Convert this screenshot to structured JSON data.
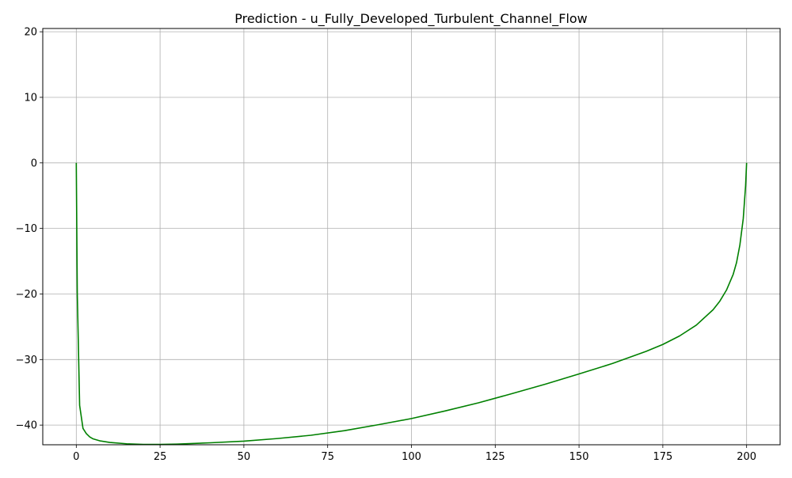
{
  "chart_data": {
    "type": "line",
    "title": "Prediction - u_Fully_Developed_Turbulent_Channel_Flow",
    "xlabel": "",
    "ylabel": "",
    "xlim": [
      -10,
      210
    ],
    "ylim": [
      -43,
      20.5
    ],
    "xticks": [
      0,
      25,
      50,
      75,
      100,
      125,
      150,
      175,
      200
    ],
    "yticks": [
      -40,
      -30,
      -20,
      -10,
      0,
      10,
      20
    ],
    "xtick_labels": [
      "0",
      "25",
      "50",
      "75",
      "100",
      "125",
      "150",
      "175",
      "200"
    ],
    "ytick_labels": [
      "−40",
      "−30",
      "−20",
      "−10",
      "0",
      "10",
      "20"
    ],
    "grid": true,
    "legend": false,
    "line_color": "#008000",
    "series": [
      {
        "x": [
          0,
          0.3,
          1,
          2,
          3,
          4,
          5,
          7,
          10,
          15,
          20,
          25,
          30,
          40,
          50,
          60,
          70,
          80,
          90,
          100,
          110,
          120,
          130,
          140,
          150,
          160,
          170,
          175,
          180,
          185,
          190,
          192,
          194,
          196,
          197,
          198,
          199,
          199.7,
          200
        ],
        "y": [
          0,
          -20,
          -37,
          -40.5,
          -41.3,
          -41.8,
          -42.1,
          -42.4,
          -42.65,
          -42.85,
          -42.95,
          -42.95,
          -42.9,
          -42.7,
          -42.45,
          -42.05,
          -41.55,
          -40.85,
          -39.95,
          -39,
          -37.85,
          -36.6,
          -35.2,
          -33.75,
          -32.2,
          -30.6,
          -28.75,
          -27.7,
          -26.4,
          -24.75,
          -22.4,
          -21.1,
          -19.4,
          -17,
          -15.2,
          -12.5,
          -8.5,
          -3.5,
          0
        ]
      }
    ]
  }
}
